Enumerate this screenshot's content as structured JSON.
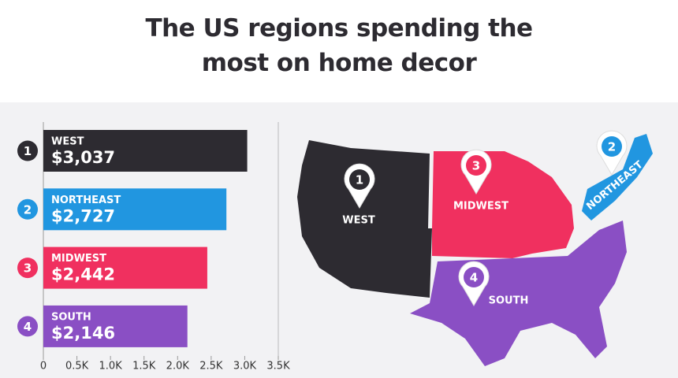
{
  "chart_data": {
    "type": "bar",
    "orientation": "horizontal",
    "title": "The US regions spending the most on home decor",
    "categories": [
      "WEST",
      "NORTHEAST",
      "MIDWEST",
      "SOUTH"
    ],
    "ranks": [
      1,
      2,
      3,
      4
    ],
    "values": [
      3037,
      2727,
      2442,
      2146
    ],
    "value_labels": [
      "$3,037",
      "$2,727",
      "$2,442",
      "$2,146"
    ],
    "colors": [
      "#2d2b31",
      "#2196e0",
      "#f0305f",
      "#8a4fc4"
    ],
    "xlim": [
      0,
      3500
    ],
    "xticks": [
      0,
      {
        "value": 500,
        "label": "0.5K"
      },
      {
        "value": 1000,
        "label": "1.0K"
      },
      {
        "value": 1500,
        "label": "1.5K"
      },
      {
        "value": 2000,
        "label": "2.0K"
      },
      {
        "value": 2500,
        "label": "2.5K"
      },
      {
        "value": 3000,
        "label": "3.0K"
      },
      {
        "value": 3500,
        "label": "3.5K"
      }
    ]
  }
}
